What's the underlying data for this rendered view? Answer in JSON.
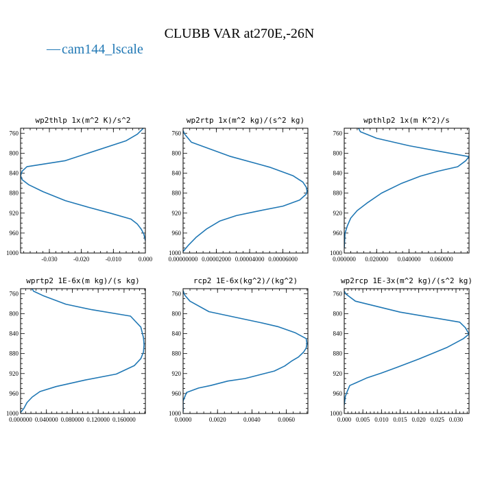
{
  "figure_title": "CLUBB VAR at270E,-26N",
  "legend": {
    "marker": "—",
    "label": "cam144_lscale"
  },
  "colors": {
    "series": "#1f77b4"
  },
  "chart_data": [
    {
      "type": "line",
      "title": "wp2thlp  1x(m^2 K)/s^2",
      "xlim": [
        -0.039,
        0.0
      ],
      "ylim": [
        1000,
        750
      ],
      "xticks": [
        -0.03,
        -0.02,
        -0.01,
        0.0
      ],
      "xtick_labels": [
        "-0.030",
        "-0.020",
        "-0.010",
        "0.000"
      ],
      "yticks": [
        760,
        800,
        840,
        880,
        920,
        960,
        1000
      ],
      "series": [
        {
          "x": [
            0.0,
            -0.0025,
            -0.006,
            -0.025,
            -0.037,
            -0.0385,
            -0.039,
            -0.0385,
            -0.0365,
            -0.032,
            -0.025,
            -0.018,
            -0.011,
            -0.0045,
            -0.0025,
            -0.0013,
            -0.0005,
            0.0
          ],
          "y": [
            746,
            762,
            775,
            815,
            827,
            836,
            845,
            853,
            863,
            877,
            895,
            908,
            920,
            932,
            942,
            952,
            962,
            975
          ]
        }
      ]
    },
    {
      "type": "line",
      "title": "wp2rtp  1x(m^2 kg)/(s^2 kg)",
      "xlim": [
        0.0,
        7.5e-05
      ],
      "ylim": [
        1000,
        750
      ],
      "xticks": [
        0.0,
        2e-05,
        4e-05,
        6e-05
      ],
      "xtick_labels": [
        "0.00000000",
        "0.00002000",
        "0.00004000",
        "0.00006000"
      ],
      "yticks": [
        760,
        800,
        840,
        880,
        920,
        960,
        1000
      ],
      "series": [
        {
          "x": [
            0.0,
            1e-06,
            5e-06,
            2.8e-05,
            5.2e-05,
            6.6e-05,
            7.2e-05,
            7.4e-05,
            7.45e-05,
            7.4e-05,
            7e-05,
            6e-05,
            4.5e-05,
            3.2e-05,
            2.2e-05,
            1.4e-05,
            8e-06,
            3e-06,
            0.0
          ],
          "y": [
            755,
            762,
            778,
            806,
            828,
            845,
            858,
            868,
            876,
            882,
            894,
            906,
            916,
            925,
            936,
            952,
            968,
            985,
            997
          ]
        }
      ]
    },
    {
      "type": "line",
      "title": "wpthlp2  1x(m K^2)/s",
      "xlim": [
        0.0,
        0.077
      ],
      "ylim": [
        1000,
        750
      ],
      "xticks": [
        0.0,
        0.02,
        0.04,
        0.06
      ],
      "xtick_labels": [
        "0.000000",
        "0.020000",
        "0.040000",
        "0.060000"
      ],
      "yticks": [
        760,
        800,
        840,
        880,
        920,
        960,
        1000
      ],
      "series": [
        {
          "x": [
            0.008,
            0.01,
            0.02,
            0.04,
            0.06,
            0.077,
            0.075,
            0.07,
            0.058,
            0.047,
            0.035,
            0.023,
            0.014,
            0.008,
            0.004,
            0.002,
            0.0005,
            0.0
          ],
          "y": [
            745,
            757,
            770,
            785,
            797,
            807,
            815,
            827,
            836,
            846,
            861,
            880,
            900,
            915,
            930,
            945,
            960,
            990
          ]
        }
      ]
    },
    {
      "type": "line",
      "title": "wprtp2  1E-6x(m kg)/(s kg)",
      "xlim": [
        0.0,
        0.193
      ],
      "ylim": [
        1000,
        750
      ],
      "xticks": [
        0.0,
        0.04,
        0.08,
        0.12,
        0.16
      ],
      "xtick_labels": [
        "0.000000",
        "0.040000",
        "0.080000",
        "0.120000",
        "0.160000"
      ],
      "yticks": [
        760,
        800,
        840,
        880,
        920,
        960,
        1000
      ],
      "series": [
        {
          "x": [
            0.015,
            0.02,
            0.035,
            0.07,
            0.11,
            0.17,
            0.186,
            0.19,
            0.191,
            0.19,
            0.186,
            0.176,
            0.148,
            0.1,
            0.055,
            0.03,
            0.018,
            0.01,
            0.005,
            0.0
          ],
          "y": [
            744,
            755,
            764,
            781,
            792,
            805,
            827,
            848,
            862,
            877,
            890,
            904,
            921,
            933,
            946,
            956,
            967,
            978,
            990,
            998
          ]
        }
      ]
    },
    {
      "type": "line",
      "title": "rcp2  1E-6x(kg^2)/(kg^2)",
      "xlim": [
        0.0,
        0.00725
      ],
      "ylim": [
        1000,
        750
      ],
      "xticks": [
        0.0,
        0.002,
        0.004,
        0.006
      ],
      "xtick_labels": [
        "0.0000",
        "0.0020",
        "0.0040",
        "0.0060"
      ],
      "yticks": [
        760,
        800,
        840,
        880,
        920,
        960,
        1000
      ],
      "series": [
        {
          "x": [
            0.0,
            0.0001,
            0.0004,
            0.0015,
            0.003,
            0.0045,
            0.0055,
            0.0065,
            0.00715,
            0.0072,
            0.00715,
            0.007,
            0.0067,
            0.0063,
            0.0059,
            0.0053,
            0.0036,
            0.0026,
            0.0016,
            0.0009,
            0.0002,
            0.0,
            0.0
          ],
          "y": [
            754,
            763,
            775,
            796,
            807,
            818,
            826,
            838,
            850,
            860,
            869,
            877,
            887,
            895,
            905,
            915,
            930,
            935,
            944,
            949,
            958,
            975,
            997
          ]
        }
      ]
    },
    {
      "type": "line",
      "title": "wp2rcp  1E-3x(m^2 kg)/(s^2 kg)",
      "xlim": [
        0.0,
        0.0335
      ],
      "ylim": [
        1000,
        750
      ],
      "xticks": [
        0.0,
        0.005,
        0.01,
        0.015,
        0.02,
        0.025,
        0.03
      ],
      "xtick_labels": [
        "0.000",
        "0.005",
        "0.010",
        "0.015",
        "0.020",
        "0.025",
        "0.030"
      ],
      "yticks": [
        760,
        800,
        840,
        880,
        920,
        960,
        1000
      ],
      "series": [
        {
          "x": [
            0.0,
            0.0005,
            0.003,
            0.015,
            0.031,
            0.0325,
            0.0335,
            0.032,
            0.0275,
            0.02,
            0.014,
            0.01,
            0.006,
            0.003,
            0.0015,
            0.0008,
            0.0003,
            0.0
          ],
          "y": [
            755,
            761,
            775,
            797,
            817,
            828,
            841,
            850,
            868,
            891,
            908,
            919,
            929,
            939,
            944,
            956,
            966,
            983
          ]
        }
      ]
    }
  ]
}
